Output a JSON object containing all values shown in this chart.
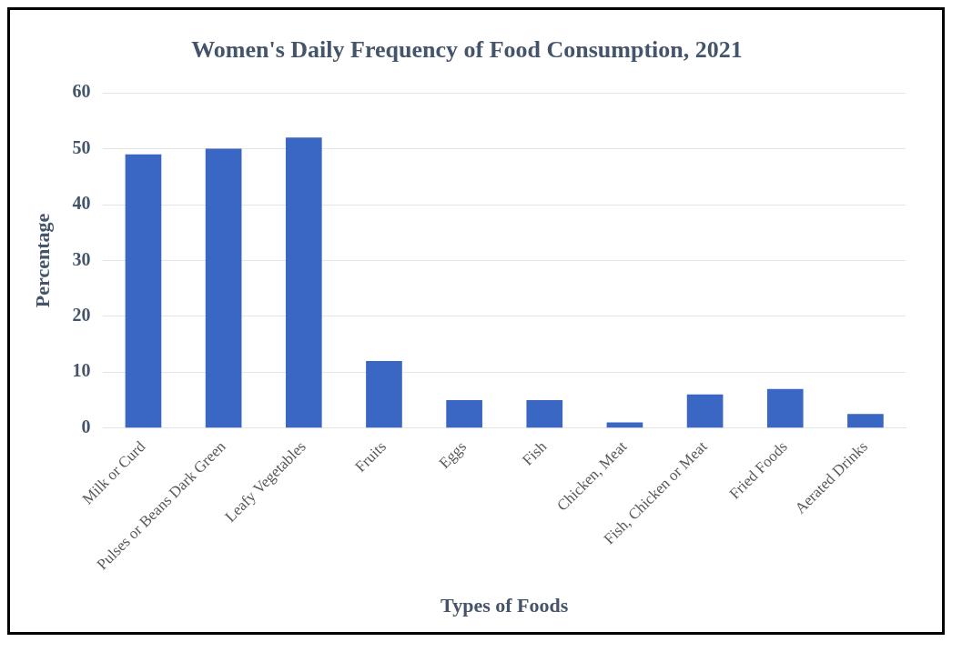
{
  "chart_data": {
    "type": "bar",
    "title": "Women's Daily Frequency of Food Consumption, 2021",
    "xlabel": "Types of Foods",
    "ylabel": "Percentage",
    "categories": [
      "Milk or Curd",
      "Pulses or Beans Dark Green",
      "Leafy Vegetables",
      "Fruits",
      "Eggs",
      "Fish",
      "Chicken, Meat",
      "Fish, Chicken or Meat",
      "Fried Foods",
      "Aerated Drinks"
    ],
    "values": [
      49,
      50,
      52,
      12,
      5,
      5,
      1,
      6,
      7,
      2.5
    ],
    "color": "#3a66c4",
    "ylim": [
      0,
      60
    ],
    "yticks": [
      0,
      10,
      20,
      30,
      40,
      50,
      60
    ],
    "grid": "y",
    "legend": false
  }
}
